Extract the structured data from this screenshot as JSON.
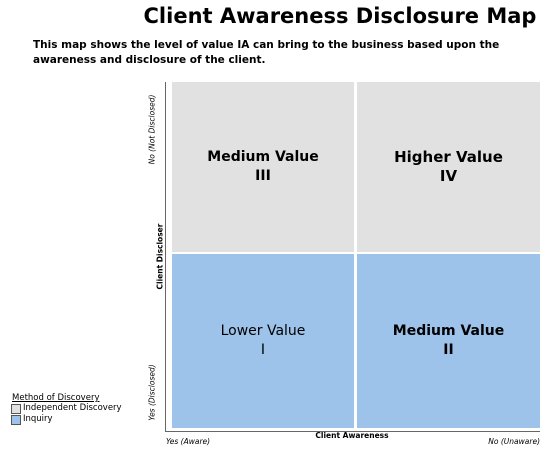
{
  "header": {
    "title": "Client Awareness Disclosure Map",
    "subtitle": "This map shows the level of value IA can bring to the business based upon the awareness and disclosure of the client."
  },
  "quadrants": [
    {
      "label": "Medium Value",
      "numeral": "III"
    },
    {
      "label": "Higher Value",
      "numeral": "IV"
    },
    {
      "label": "Lower Value",
      "numeral": "I"
    },
    {
      "label": "Medium Value",
      "numeral": "II"
    }
  ],
  "y_axis": {
    "title": "Client Discloser",
    "top": "No (Not Disclosed)",
    "bottom": "Yes (Disclosed)"
  },
  "x_axis": {
    "title": "Client Awareness",
    "left": "Yes (Aware)",
    "right": "No (Unaware)"
  },
  "legend": {
    "title": "Method of Discovery",
    "items": [
      "Independent Discovery",
      "Inquiry"
    ]
  }
}
